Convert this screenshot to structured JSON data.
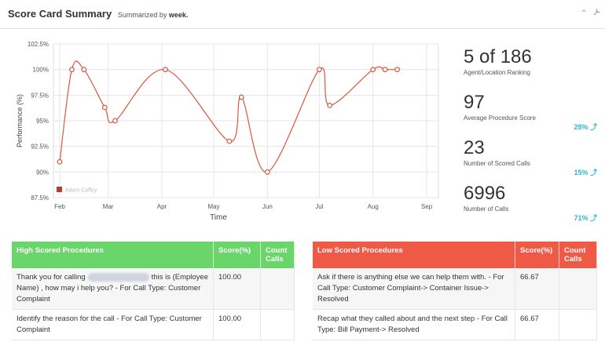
{
  "header": {
    "title": "Score Card Summary",
    "summarized_prefix": "Summarized by",
    "summarized_value": "week."
  },
  "chart_data": {
    "type": "line",
    "ylabel": "Performance (%)",
    "xlabel": "Time",
    "ylim": [
      87.5,
      102.5
    ],
    "yticks": [
      "102.5%",
      "100%",
      "97.5%",
      "95%",
      "92.5%",
      "90%",
      "87.5%"
    ],
    "xticks": [
      "Feb",
      "Mar",
      "Apr",
      "May",
      "Jun",
      "Jul",
      "Aug",
      "Sep"
    ],
    "legend": "bottom-left",
    "series": [
      {
        "name": "Adam Coffey",
        "color": "#d9573f",
        "x": [
          "Feb 1",
          "Feb 8",
          "Feb 15",
          "Feb 27",
          "Mar 5",
          "Apr 3",
          "May 10",
          "May 17",
          "Jun 1",
          "Jul 1",
          "Jul 7",
          "Aug 1",
          "Aug 8",
          "Aug 15"
        ],
        "values": [
          91.0,
          100.0,
          100.0,
          96.3,
          95.0,
          100.0,
          93.0,
          97.3,
          90.0,
          100.0,
          96.5,
          100.0,
          100.0,
          100.0
        ]
      }
    ]
  },
  "kpis": [
    {
      "value": "5 of 186",
      "label": "Agent/Location Ranking",
      "pct": ""
    },
    {
      "value": "97",
      "label": "Average Procedure Score",
      "pct": "28% ⤴"
    },
    {
      "value": "23",
      "label": "Number of Scored Calls",
      "pct": "15% ⤴"
    },
    {
      "value": "6996",
      "label": "Number of Calls",
      "pct": "71% ⤴"
    }
  ],
  "high": {
    "headers": [
      "High Scored Procedures",
      "Score(%)",
      "Count Calls"
    ],
    "rows": [
      {
        "a": "Thank you for calling",
        "b": "this is (Employee Name) , how may i help you? - For Call Type: Customer Complaint",
        "score": "100.00",
        "count": ""
      },
      {
        "a": "Identify the reason for the call - For Call Type: Customer Complaint",
        "b": "",
        "score": "100.00",
        "count": ""
      }
    ]
  },
  "low": {
    "headers": [
      "Low Scored Procedures",
      "Score(%)",
      "Count Calls"
    ],
    "rows": [
      {
        "text": "Ask if there is anything else we can help them with. - For Call Type: Customer Complaint-> Container Issue-> Resolved",
        "score": "66.67",
        "count": ""
      },
      {
        "text": "Recap what they called about and the next step - For Call Type: Bill Payment-> Resolved",
        "score": "66.67",
        "count": ""
      }
    ]
  },
  "icons": {
    "collapse": "chevron-up-icon",
    "settings": "wrench-icon"
  }
}
